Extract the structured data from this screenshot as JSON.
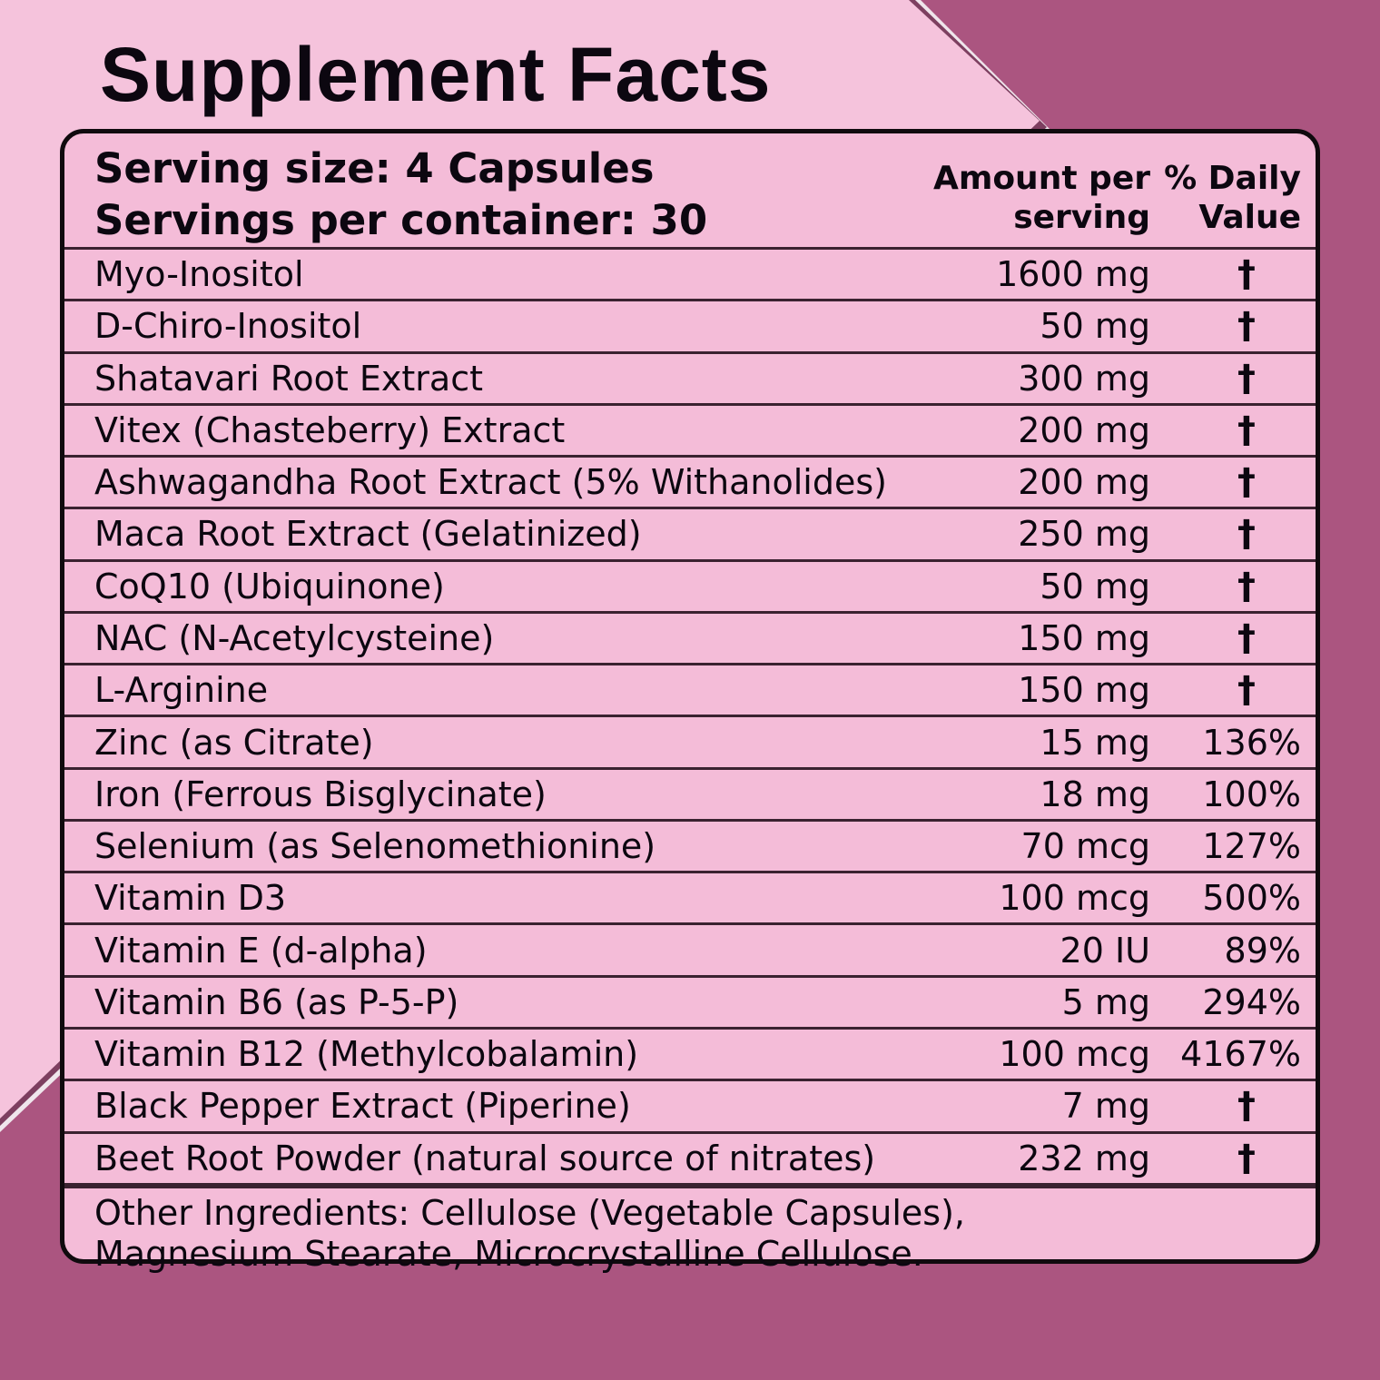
{
  "title": "Supplement Facts",
  "colors": {
    "background": "#ab5580",
    "panel": "#f4bcd8",
    "panel_outer": "#f5c3dc",
    "edge_highlight": "#efe6ec",
    "edge_shadow": "#7d3f60",
    "line": "#3a2230",
    "border": "#100a0e",
    "text": "#0c0710"
  },
  "table": {
    "serving_size_line": "Serving size: 4 Capsules",
    "servings_per_container_line": "Servings per container: 30",
    "col_amount_line1": "Amount per",
    "col_amount_line2": "serving",
    "col_dv_line1": "% Daily",
    "col_dv_line2": "Value",
    "dagger_symbol": "†",
    "rows": [
      {
        "name": "Myo-Inositol",
        "amount": "1600 mg",
        "daily_value": "†"
      },
      {
        "name": "D-Chiro-Inositol",
        "amount": "50 mg",
        "daily_value": "†"
      },
      {
        "name": "Shatavari Root Extract",
        "amount": "300 mg",
        "daily_value": "†"
      },
      {
        "name": "Vitex (Chasteberry) Extract",
        "amount": "200 mg",
        "daily_value": "†"
      },
      {
        "name": "Ashwagandha Root Extract (5% Withanolides)",
        "amount": "200 mg",
        "daily_value": "†"
      },
      {
        "name": "Maca Root Extract (Gelatinized)",
        "amount": "250 mg",
        "daily_value": "†"
      },
      {
        "name": "CoQ10 (Ubiquinone)",
        "amount": "50 mg",
        "daily_value": "†"
      },
      {
        "name": "NAC (N-Acetylcysteine)",
        "amount": "150 mg",
        "daily_value": "†"
      },
      {
        "name": "L-Arginine",
        "amount": "150 mg",
        "daily_value": "†"
      },
      {
        "name": "Zinc (as Citrate)",
        "amount": "15 mg",
        "daily_value": "136%"
      },
      {
        "name": "Iron (Ferrous Bisglycinate)",
        "amount": "18 mg",
        "daily_value": "100%"
      },
      {
        "name": "Selenium (as Selenomethionine)",
        "amount": "70 mcg",
        "daily_value": "127%"
      },
      {
        "name": "Vitamin D3",
        "amount": "100 mcg",
        "daily_value": "500%"
      },
      {
        "name": "Vitamin E (d-alpha)",
        "amount": "20 IU",
        "daily_value": "89%"
      },
      {
        "name": "Vitamin B6 (as P-5-P)",
        "amount": "5 mg",
        "daily_value": "294%"
      },
      {
        "name": "Vitamin B12 (Methylcobalamin)",
        "amount": "100 mcg",
        "daily_value": "4167%"
      },
      {
        "name": "Black Pepper Extract (Piperine)",
        "amount": "7 mg",
        "daily_value": "†"
      },
      {
        "name": "Beet Root Powder (natural source of nitrates)",
        "amount": "232 mg",
        "daily_value": "†"
      }
    ],
    "other_ingredients_line1": "Other Ingredients: Cellulose (Vegetable Capsules),",
    "other_ingredients_line2": "Magnesium Stearate, Microcrystalline Cellulose."
  }
}
